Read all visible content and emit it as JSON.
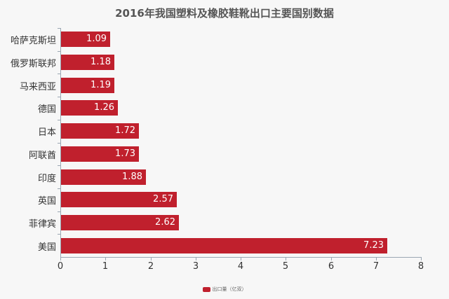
{
  "chart_data": {
    "type": "bar",
    "orientation": "horizontal",
    "title": "2016年我国塑料及橡胶鞋靴出口主要国别数据",
    "categories": [
      "哈萨克斯坦",
      "俄罗斯联邦",
      "马来西亚",
      "德国",
      "日本",
      "阿联酋",
      "印度",
      "英国",
      "菲律宾",
      "美国"
    ],
    "series": [
      {
        "name": "出口量（亿双）",
        "values": [
          1.09,
          1.18,
          1.19,
          1.26,
          1.72,
          1.73,
          1.88,
          2.57,
          2.62,
          7.23
        ],
        "color": "#c0202d"
      }
    ],
    "value_labels": [
      "1.09",
      "1.18",
      "1.19",
      "1.26",
      "1.72",
      "1.73",
      "1.88",
      "2.57",
      "2.62",
      "7.23"
    ],
    "xlabel": "",
    "ylabel": "",
    "xlim": [
      0,
      8
    ],
    "xticks": [
      "0",
      "1",
      "2",
      "3",
      "4",
      "5",
      "6",
      "7",
      "8"
    ],
    "grid": false,
    "legend_position": "bottom"
  },
  "title": "2016年我国塑料及橡胶鞋靴出口主要国别数据",
  "legend": {
    "label": "出口量（亿双）"
  }
}
